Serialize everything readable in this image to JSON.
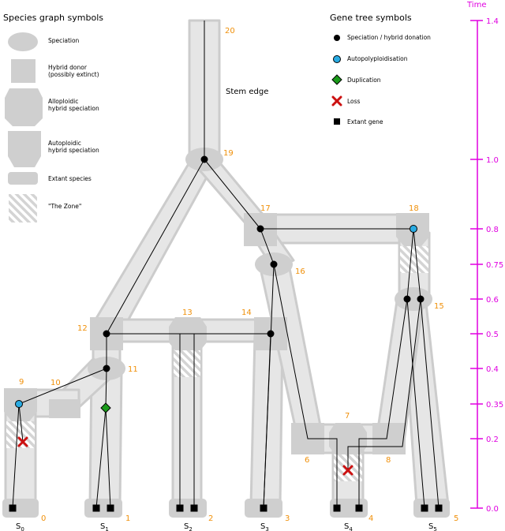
{
  "legend_species": {
    "title": "Species graph symbols",
    "items": [
      {
        "label": "Speciation",
        "shape": "ellipse"
      },
      {
        "label": "Hybrid donor\n(possibly extinct)",
        "shape": "square"
      },
      {
        "label": "Alloploidic\nhybrid speciation",
        "shape": "octagon"
      },
      {
        "label": "Autoploidic\nhybrid speciation",
        "shape": "pentagon"
      },
      {
        "label": "Extant species",
        "shape": "rounded-rect"
      },
      {
        "label": "\"The Zone\"",
        "shape": "hatched"
      }
    ]
  },
  "legend_gene": {
    "title": "Gene tree symbols",
    "items": [
      {
        "label": "Speciation / hybrid donation",
        "marker": "black-dot"
      },
      {
        "label": "Autopolyploidisation",
        "marker": "blue-dot"
      },
      {
        "label": "Duplication",
        "marker": "green-diamond"
      },
      {
        "label": "Loss",
        "marker": "red-x"
      },
      {
        "label": "Extant gene",
        "marker": "black-square"
      }
    ]
  },
  "stem_label": "Stem edge",
  "axis": {
    "label": "Time",
    "ticks": [
      "1.4",
      "1.0",
      "0.8",
      "0.75",
      "0.6",
      "0.5",
      "0.4",
      "0.35",
      "0.2",
      "0.0"
    ]
  },
  "node_numbers": [
    "0",
    "1",
    "2",
    "3",
    "4",
    "5",
    "6",
    "7",
    "8",
    "9",
    "10",
    "11",
    "12",
    "13",
    "14",
    "15",
    "16",
    "17",
    "18",
    "19",
    "20"
  ],
  "species": [
    {
      "base": "S",
      "sub": "0"
    },
    {
      "base": "S",
      "sub": "1"
    },
    {
      "base": "S",
      "sub": "2"
    },
    {
      "base": "S",
      "sub": "3"
    },
    {
      "base": "S",
      "sub": "4"
    },
    {
      "base": "S",
      "sub": "5"
    }
  ],
  "colors": {
    "tube": "#e6e6e6",
    "tube_border": "#cccccc",
    "node": "#cfcfcf",
    "node_number": "#f0900a",
    "axis": "#e000e0",
    "autopoly": "#29abe2",
    "duplication": "#1a9a1a",
    "loss": "#cc1111"
  }
}
